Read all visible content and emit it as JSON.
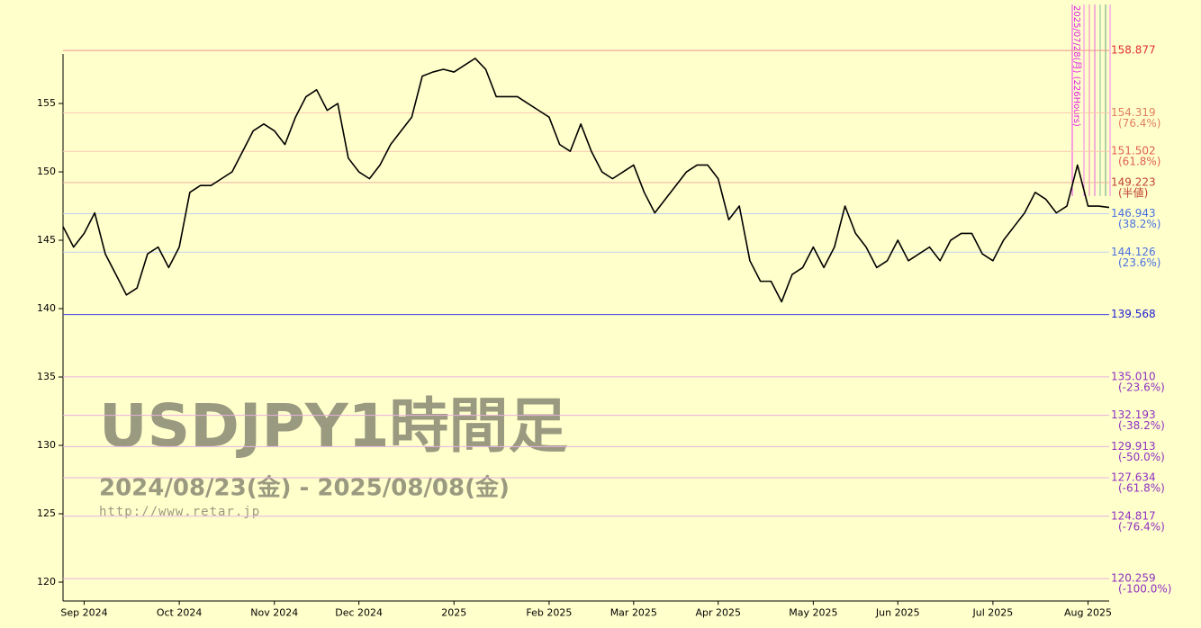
{
  "chart_data": {
    "type": "line",
    "title": "USDJPY1時間足",
    "subtitle": "2024/08/23(金) - 2025/08/08(金)",
    "source": "http://www.retar.jp",
    "annotation": "2025/07/28(月) (226Hours)",
    "categories": [
      null,
      null,
      "Sep 2024",
      null,
      null,
      null,
      null,
      null,
      null,
      null,
      null,
      "Oct 2024",
      null,
      null,
      null,
      null,
      null,
      null,
      null,
      null,
      "Nov 2024",
      null,
      null,
      null,
      null,
      null,
      null,
      null,
      "Dec 2024",
      null,
      null,
      null,
      null,
      null,
      null,
      null,
      null,
      "2025",
      null,
      null,
      null,
      null,
      null,
      null,
      null,
      null,
      "Feb 2025",
      null,
      null,
      null,
      null,
      null,
      null,
      null,
      "Mar 2025",
      null,
      null,
      null,
      null,
      null,
      null,
      null,
      "Apr 2025",
      null,
      null,
      null,
      null,
      null,
      null,
      null,
      null,
      "May 2025",
      null,
      null,
      null,
      null,
      null,
      null,
      null,
      "Jun 2025",
      null,
      null,
      null,
      null,
      null,
      null,
      null,
      null,
      "Jul 2025",
      null,
      null,
      null,
      null,
      null,
      null,
      null,
      null,
      "Aug 2025",
      null,
      null
    ],
    "series": [
      {
        "color": "#000000",
        "values": [
          146,
          144.5,
          145.5,
          147,
          144,
          142.5,
          141,
          141.5,
          144,
          144.5,
          143,
          144.5,
          148.5,
          149,
          149,
          149.5,
          150,
          151.5,
          153,
          153.5,
          153,
          152,
          154,
          155.5,
          156,
          154.5,
          155,
          151,
          150,
          149.5,
          150.5,
          152,
          153,
          154,
          157,
          157.3,
          157.5,
          157.3,
          157.8,
          158.3,
          157.5,
          155.5,
          155.5,
          155.5,
          155,
          154.5,
          154,
          152,
          151.5,
          153.5,
          151.5,
          150,
          149.5,
          150,
          150.5,
          148.5,
          147,
          148,
          149,
          150,
          150.5,
          150.5,
          149.5,
          146.5,
          147.5,
          143.5,
          142,
          142,
          140.5,
          142.5,
          143,
          144.5,
          143,
          144.5,
          147.5,
          145.5,
          144.5,
          143,
          143.5,
          145,
          143.5,
          144,
          144.5,
          143.5,
          145,
          145.5,
          145.5,
          144,
          143.5,
          145,
          146,
          147,
          148.5,
          148,
          147,
          147.5,
          150.5,
          147.5,
          147.5,
          147.4
        ]
      }
    ],
    "ylim": [
      118.6,
      159.1
    ],
    "yticks": [
      120,
      125,
      130,
      135,
      140,
      145,
      150,
      155
    ],
    "levels": [
      {
        "value": 158.877,
        "label": "158.877",
        "color": "#e03030",
        "line": "#f09090"
      },
      {
        "value": 154.319,
        "label": "154.319",
        "ratio": "(76.4%)",
        "color": "#e08060",
        "line": "#f8c8b0"
      },
      {
        "value": 151.502,
        "label": "151.502",
        "ratio": "(61.8%)",
        "color": "#e06050",
        "line": "#f8c8b0"
      },
      {
        "value": 149.223,
        "label": "149.223",
        "ratio": "(半値)",
        "color": "#c04030",
        "line": "#f0b0a0"
      },
      {
        "value": 146.943,
        "label": "146.943",
        "ratio": "(38.2%)",
        "color": "#4a70e0",
        "line": "#c0d0f0"
      },
      {
        "value": 144.126,
        "label": "144.126",
        "ratio": "(23.6%)",
        "color": "#4a70e0",
        "line": "#c0d0f0"
      },
      {
        "value": 139.568,
        "label": "139.568",
        "color": "#2020d0",
        "line": "#4040e0"
      },
      {
        "value": 135.01,
        "label": "135.010",
        "ratio": "(-23.6%)",
        "color": "#9030c0",
        "line": "#e8b0e0"
      },
      {
        "value": 132.193,
        "label": "132.193",
        "ratio": "(-38.2%)",
        "color": "#9030c0",
        "line": "#e8b0e0"
      },
      {
        "value": 129.913,
        "label": "129.913",
        "ratio": "(-50.0%)",
        "color": "#9030c0",
        "line": "#e8b0e0"
      },
      {
        "value": 127.634,
        "label": "127.634",
        "ratio": "(-61.8%)",
        "color": "#9030c0",
        "line": "#e8b0e0"
      },
      {
        "value": 124.817,
        "label": "124.817",
        "ratio": "(-76.4%)",
        "color": "#9030c0",
        "line": "#e8b0e0"
      },
      {
        "value": 120.259,
        "label": "120.259",
        "ratio": "(-100.0%)",
        "color": "#9030c0",
        "line": "#e8b0e0"
      }
    ]
  }
}
